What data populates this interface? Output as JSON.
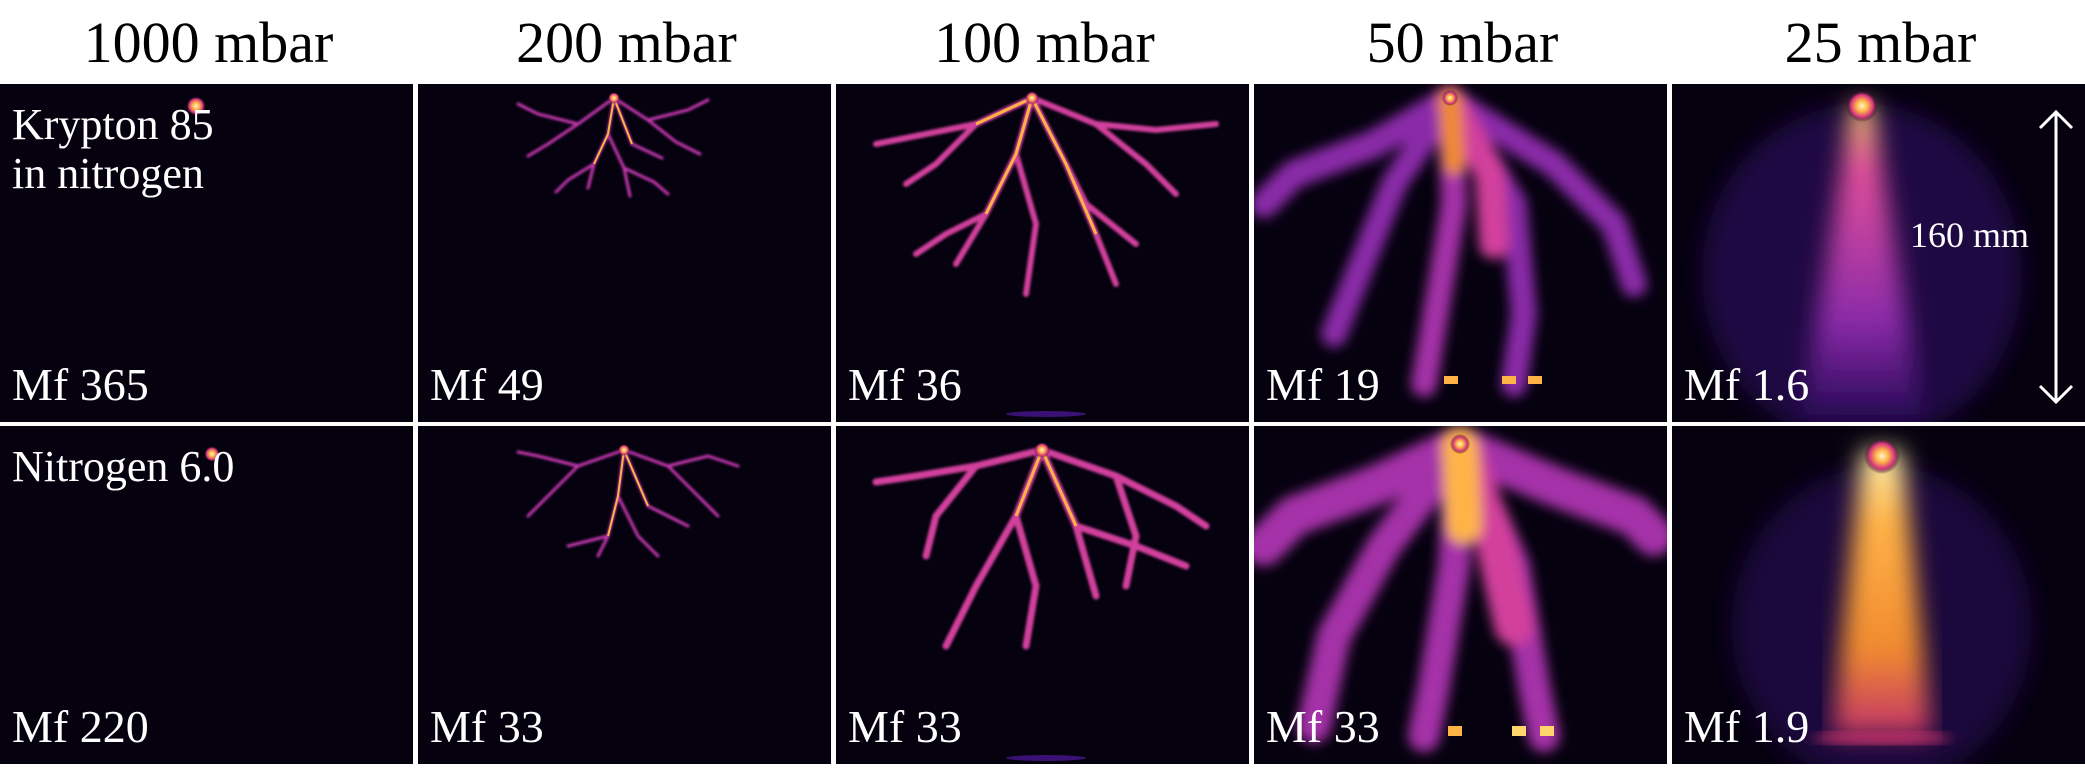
{
  "columns": [
    "1000 mbar",
    "200 mbar",
    "100 mbar",
    "50 mbar",
    "25 mbar"
  ],
  "rows": [
    {
      "gas_lines": [
        "Krypton 85",
        "in nitrogen"
      ],
      "mf": [
        "Mf 365",
        "Mf 49",
        "Mf 36",
        "Mf 19",
        "Mf 1.6"
      ]
    },
    {
      "gas_lines": [
        "Nitrogen 6.0"
      ],
      "mf": [
        "Mf 220",
        "Mf 33",
        "Mf 33",
        "Mf 33",
        "Mf 1.9"
      ]
    }
  ],
  "scale_bar": {
    "label": "160 mm"
  },
  "colors": {
    "background": "#05010f",
    "glow_core": "#ffd66b",
    "glow_mid": "#e2409a",
    "glow_outer": "#5a1aa8"
  }
}
